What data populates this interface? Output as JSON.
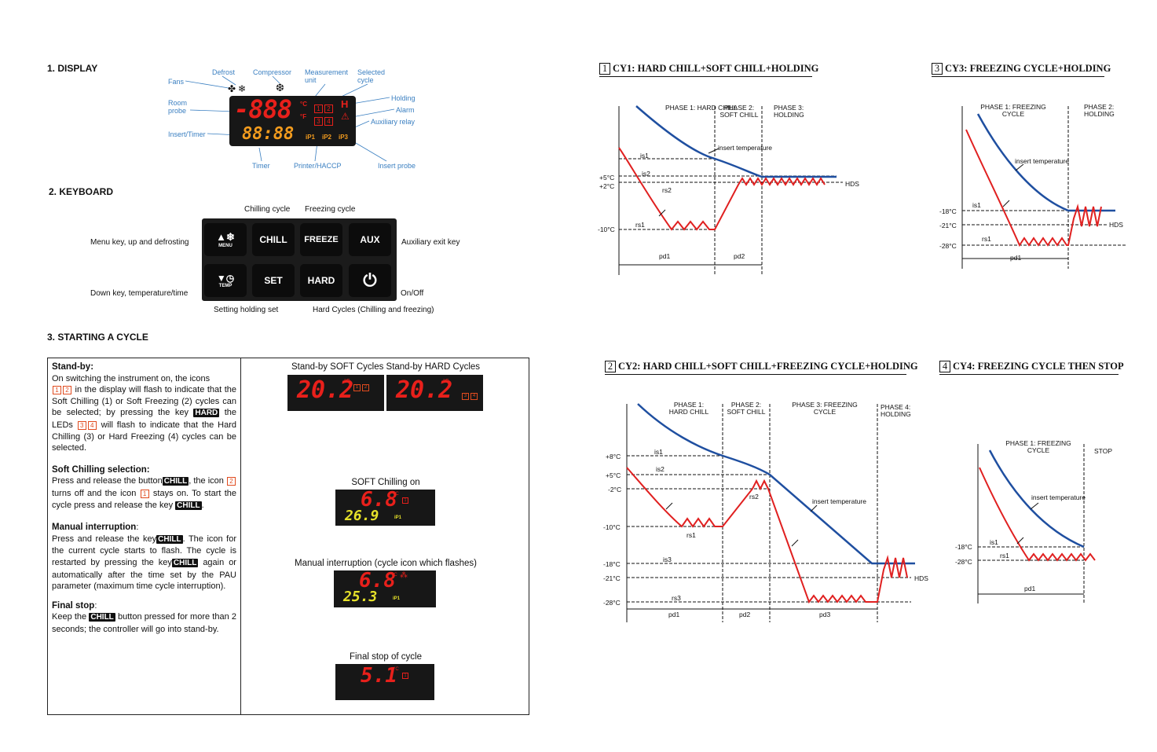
{
  "sections": {
    "display": "1. DISPLAY",
    "keyboard": "2. KEYBOARD",
    "starting": "3. STARTING A CYCLE"
  },
  "display_labels": {
    "fans": "Fans",
    "defrost": "Defrost",
    "compressor": "Compressor",
    "measurement_unit": "Measurement unit",
    "selected_cycle": "Selected cycle",
    "room_probe": "Room probe",
    "holding": "Holding",
    "alarm": "Alarm",
    "auxiliary_relay": "Auxiliary relay",
    "insert_timer": "Insert/Timer",
    "timer": "Timer",
    "printer_haccp": "Printer/HACCP",
    "insert_probe": "Insert probe"
  },
  "display_panel": {
    "top_digits": "-888",
    "bottom_digits": "88:88",
    "unit_c": "°C",
    "unit_f": "°F",
    "holding_h": "H",
    "ip1": "iP1",
    "ip2": "iP2",
    "ip3": "iP3",
    "cycle_icons": [
      "1",
      "2",
      "3",
      "4"
    ]
  },
  "keyboard": {
    "chilling_cycle": "Chilling cycle",
    "freezing_cycle": "Freezing cycle",
    "menu_desc": "Menu key, up and defrosting",
    "aux_desc": "Auxiliary exit key",
    "down_desc": "Down key, temperature/time",
    "onoff_desc": "On/Off",
    "setting_desc": "Setting holding set",
    "hard_desc": "Hard Cycles (Chilling and freezing)",
    "keys": {
      "menu": "MENU",
      "chill": "CHILL",
      "freeze": "FREEZE",
      "aux": "AUX",
      "temp": "TEMP",
      "set": "SET",
      "hard": "HARD"
    }
  },
  "starting": {
    "standby_title": "Stand-by:",
    "standby_p1": "On switching the instrument on, the icons",
    "standby_p2": "in the display will flash to indicate that the Soft Chilling (1) or Soft Freezing (2) cycles can be selected; by pressing the key",
    "standby_p3": "the LEDs",
    "standby_p4": "will flash to indicate that the Hard Chilling (3) or Hard Freezing (4) cycles can be selected.",
    "soft_title": "Soft Chilling selection:",
    "soft_p1": "Press and release the button",
    "soft_p2": ", the icon",
    "soft_p3": "turns off and the icon",
    "soft_p4": "stays on. To start the cycle press and release the key",
    "soft_p5": ".",
    "manual_title": "Manual interruption",
    "manual_colon": ":",
    "manual_p1": "Press and release the key",
    "manual_p2": ". The icon for the current cycle starts to flash.  The cycle is restarted by pressing the key",
    "manual_p3": "again or automatically after the time set by the PAU parameter (maximum time cycle interruption).",
    "final_title": "Final stop",
    "final_colon": ":",
    "final_p1": "Keep the",
    "final_p2": "button pressed for more than 2 seconds; the controller will go into stand-by.",
    "key_hard": "HARD",
    "key_chill": "CHILL",
    "num1": "1",
    "num2": "2",
    "num3": "3",
    "num4": "4",
    "cap_standby": "Stand-by SOFT Cycles Stand-by HARD Cycles",
    "cap_soft": "SOFT Chilling on",
    "cap_manual": "Manual interruption (cycle icon which flashes)",
    "cap_final": "Final stop of cycle",
    "d_standby_val": "20.2",
    "d_soft_top": "6.8",
    "d_soft_bot": "26.9",
    "d_manual_top": "6.8",
    "d_manual_bot": "25.3",
    "d_final": "5.1",
    "d_unit": "°C",
    "d_ip1": "iP1"
  },
  "cy1": {
    "num": "1",
    "title": "CY1: HARD CHILL+SOFT CHILL+HOLDING",
    "phase1": "PHASE 1: HARD CHILL",
    "phase2": "PHASE 2: SOFT CHILL",
    "phase3": "PHASE 3: HOLDING",
    "insert": "insert temperature",
    "is1": "is1",
    "is2": "is2",
    "rs2": "rs2",
    "rs1": "rs1",
    "t5": "+5°C",
    "t2": "+2°C",
    "t10": "-10°C",
    "hds": "HDS",
    "pd1": "pd1",
    "pd2": "pd2"
  },
  "cy2": {
    "num": "2",
    "title": "CY2: HARD CHILL+SOFT CHILL+FREEZING CYCLE+HOLDING",
    "phase1": "PHASE 1: HARD CHILL",
    "phase2": "PHASE 2: SOFT CHILL",
    "phase3": "PHASE 3: FREEZING CYCLE",
    "phase4": "PHASE 4: HOLDING",
    "insert": "insert temperature",
    "is1": "is1",
    "is2": "is2",
    "is3": "is3",
    "rs1": "rs1",
    "rs2": "rs2",
    "rs3": "rs3",
    "t8": "+8°C",
    "t5": "+5°C",
    "t_2": "-2°C",
    "t10": "-10°C",
    "t18": "-18°C",
    "t21": "-21°C",
    "t28": "-28°C",
    "hds": "HDS",
    "pd1": "pd1",
    "pd2": "pd2",
    "pd3": "pd3"
  },
  "cy3": {
    "num": "3",
    "title": "CY3: FREEZING CYCLE+HOLDING",
    "phase1": "PHASE 1: FREEZING CYCLE",
    "phase2": "PHASE 2: HOLDING",
    "insert": "insert temperature",
    "is1": "is1",
    "rs1": "rs1",
    "t18": "-18°C",
    "t21": "-21°C",
    "t28": "-28°C",
    "hds": "HDS",
    "pd1": "pd1"
  },
  "cy4": {
    "num": "4",
    "title": "CY4: FREEZING CYCLE THEN STOP",
    "phase1": "PHASE 1: FREEZING CYCLE",
    "stop": "STOP",
    "insert": "insert temperature",
    "is1": "is1",
    "rs1": "rs1",
    "t18": "-18°C",
    "t28": "-28°C",
    "pd1": "pd1"
  },
  "colors": {
    "red_led": "#e8201b",
    "orange_led": "#f29b1e",
    "yellow_led": "#e6e12a",
    "blue_curve": "#1f4fa0",
    "red_curve": "#e02020",
    "label_blue": "#3a7fc1"
  }
}
